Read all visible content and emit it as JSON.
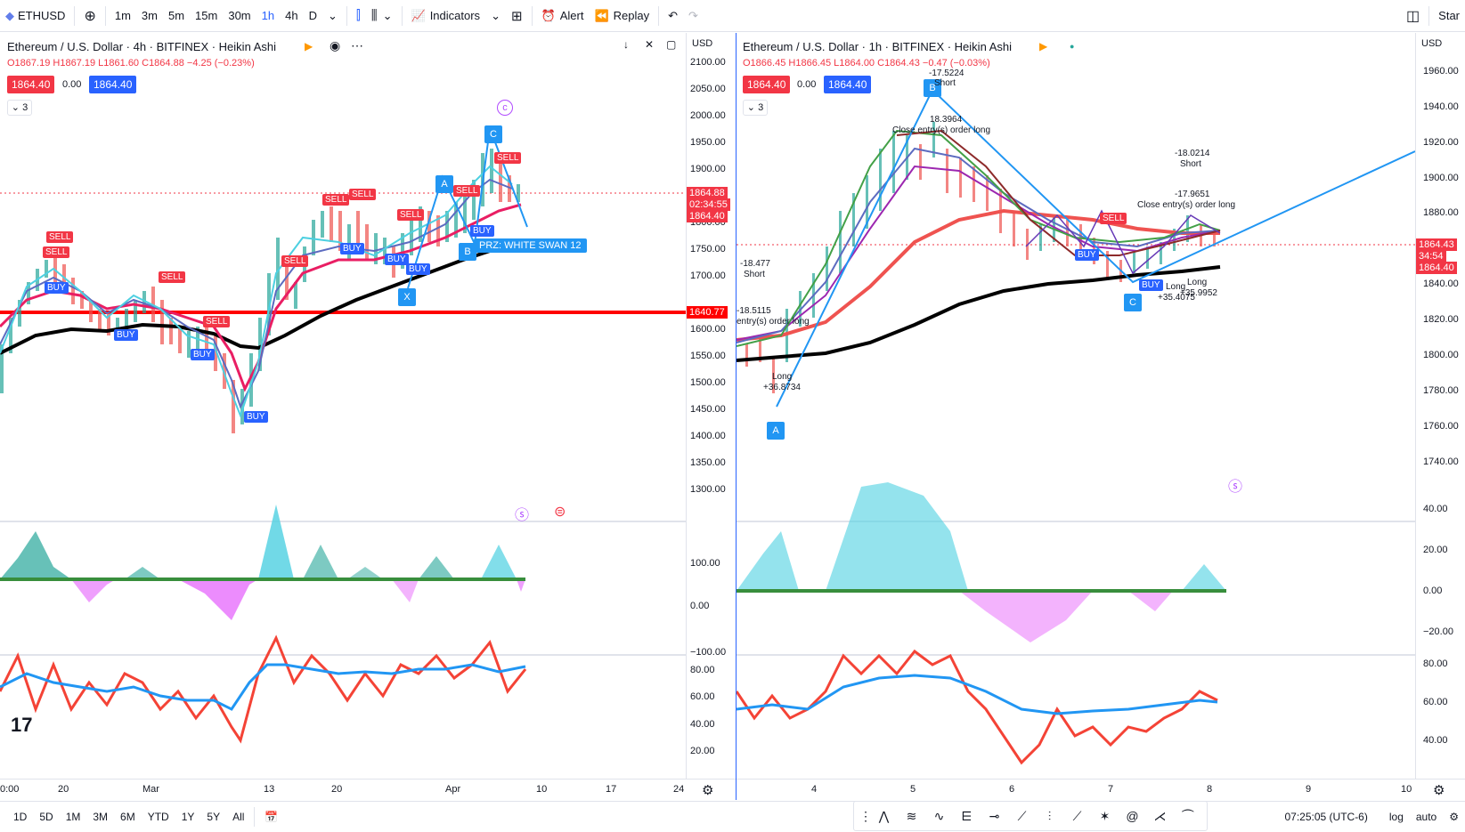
{
  "topbar": {
    "symbol": "ETHUSD",
    "timeframes": [
      "1m",
      "3m",
      "5m",
      "15m",
      "30m",
      "1h",
      "4h",
      "D"
    ],
    "active_timeframe": "1h",
    "indicators_label": "Indicators",
    "alert_label": "Alert",
    "replay_label": "Replay",
    "star_label": "Star"
  },
  "left_chart": {
    "title": "Ethereum / U.S. Dollar · 4h · BITFINEX · Heikin Ashi",
    "ohlc": {
      "o": "O1867.19",
      "h": "H1867.19",
      "l": "L1861.60",
      "c": "C1864.88",
      "chg": "−4.25 (−0.23%)"
    },
    "bid": "1864.40",
    "spread": "0.00",
    "ask": "1864.40",
    "collapse": "3",
    "currency": "USD",
    "price_ticks": [
      "2100.00",
      "2050.00",
      "2000.00",
      "1950.00",
      "1900.00",
      "1850.00",
      "1800.00",
      "1750.00",
      "1700.00",
      "1650.00",
      "1600.00",
      "1550.00",
      "1500.00",
      "1450.00",
      "1400.00",
      "1350.00",
      "1300.00"
    ],
    "last_price": "1864.88",
    "countdown": "02:34:55",
    "last_bid": "1864.40",
    "hline_price": "1640.77",
    "osc_ticks": [
      "100.00",
      "0.00",
      "−100.00"
    ],
    "rsi_ticks": [
      "80.00",
      "60.00",
      "40.00",
      "20.00"
    ],
    "time_labels": [
      "0:00",
      "20",
      "Mar",
      "13",
      "20",
      "Apr",
      "10",
      "17",
      "24"
    ],
    "pattern_label": "PRZ: WHITE SWAN 12",
    "points": {
      "c": "C",
      "a": "A",
      "b": "B",
      "x": "X",
      "circled_c": "c"
    }
  },
  "right_chart": {
    "title": "Ethereum / U.S. Dollar · 1h · BITFINEX · Heikin Ashi",
    "ohlc": {
      "o": "O1866.45",
      "h": "H1866.45",
      "l": "L1864.00",
      "c": "C1864.43",
      "chg": "−0.47 (−0.03%)"
    },
    "bid": "1864.40",
    "spread": "0.00",
    "ask": "1864.40",
    "collapse": "3",
    "currency": "USD",
    "price_ticks": [
      "1960.00",
      "1940.00",
      "1920.00",
      "1900.00",
      "1880.00",
      "1860.00",
      "1840.00",
      "1820.00",
      "1800.00",
      "1780.00",
      "1760.00",
      "1740.00"
    ],
    "last_price": "1864.43",
    "countdown": "34:54",
    "last_bid": "1864.40",
    "osc_ticks": [
      "40.00",
      "20.00",
      "0.00",
      "−20.00"
    ],
    "rsi_ticks": [
      "80.00",
      "60.00",
      "40.00"
    ],
    "time_labels": [
      "4",
      "5",
      "6",
      "7",
      "8",
      "9",
      "10"
    ],
    "annotations": {
      "short1": "-17.5224",
      "short1_label": "Short",
      "close1": "18.3964",
      "close1_label": "Close entry(s) order long",
      "short2": "-18.0214",
      "short2_label": "Short",
      "close2": "-17.9651",
      "close2_label": "Close entry(s) order long",
      "left_short": "-18.477",
      "left_short_label": "Short",
      "left_close": "-18.5115",
      "left_close_label": "entry(s) order long",
      "long1": "Long",
      "long1_val": "+36.8734",
      "long2": "Long",
      "long2_val": "+35.4075",
      "long3": "Long",
      "long3_val": "+35.9952"
    },
    "points": {
      "a": "A",
      "b": "B",
      "c": "C"
    }
  },
  "bottombar": {
    "ranges": [
      "1D",
      "5D",
      "1M",
      "3M",
      "6M",
      "YTD",
      "1Y",
      "5Y",
      "All"
    ],
    "time": "07:25:05 (UTC-6)",
    "log_label": "log",
    "auto_label": "auto"
  },
  "colors": {
    "red": "#f23645",
    "blue": "#2962ff",
    "accent_blue": "#2196f3",
    "black": "#000000"
  }
}
